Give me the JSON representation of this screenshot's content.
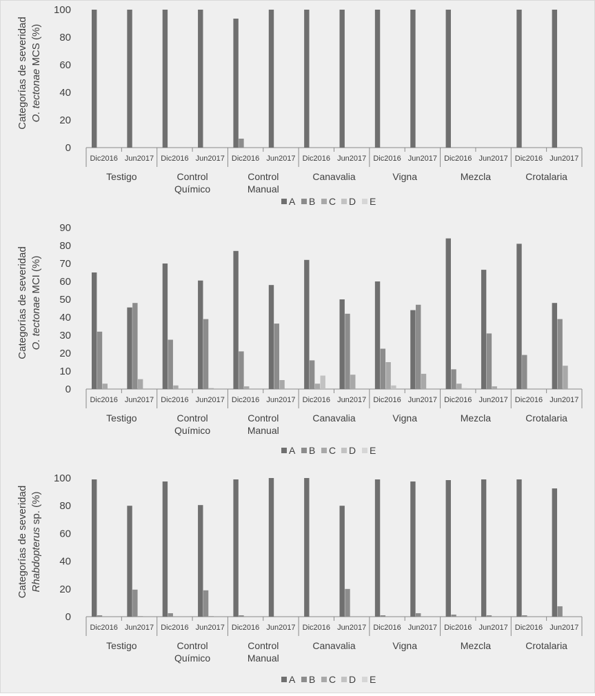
{
  "chart_data": [
    {
      "type": "bar",
      "ylabel_line1": "Categorías de severidad",
      "ylabel_species": "O. tectonae",
      "ylabel_rest": " MCS (%)",
      "ylim": [
        0,
        100
      ],
      "yticks": [
        0,
        20,
        40,
        60,
        80,
        100
      ],
      "groups": [
        "Testigo",
        "Control\nQuímico",
        "Control\nManual",
        "Canavalia",
        "Vigna",
        "Mezcla",
        "Crotalaria"
      ],
      "subcategories": [
        "Dic2016",
        "Jun2017"
      ],
      "series": [
        {
          "name": "A",
          "color": "#6f6f6f",
          "values": [
            100,
            100,
            100,
            100,
            93.5,
            100,
            100,
            100,
            100,
            100,
            100,
            0,
            100,
            100
          ]
        },
        {
          "name": "B",
          "color": "#8c8c8c",
          "values": [
            0,
            0,
            0,
            0,
            6.5,
            0,
            0,
            0,
            0,
            0,
            0,
            0,
            0,
            0
          ]
        },
        {
          "name": "C",
          "color": "#a8a8a8",
          "values": [
            0,
            0,
            0,
            0,
            0,
            0,
            0,
            0,
            0,
            0,
            0,
            0,
            0,
            0
          ]
        },
        {
          "name": "D",
          "color": "#c2c2c2",
          "values": [
            0,
            0,
            0,
            0,
            0,
            0,
            0,
            0,
            0,
            0,
            0,
            0,
            0,
            0
          ]
        },
        {
          "name": "E",
          "color": "#d6d6d6",
          "values": [
            0,
            0,
            0,
            0,
            0,
            0,
            0,
            0,
            0,
            0,
            0,
            0,
            0,
            0
          ]
        }
      ],
      "legend": "bottom"
    },
    {
      "type": "bar",
      "ylabel_line1": "Categorías de severidad",
      "ylabel_species": "O. tectonae",
      "ylabel_rest": " MCI (%)",
      "ylim": [
        0,
        90
      ],
      "yticks": [
        0,
        10,
        20,
        30,
        40,
        50,
        60,
        70,
        80,
        90
      ],
      "groups": [
        "Testigo",
        "Control\nQuímico",
        "Control\nManual",
        "Canavalia",
        "Vigna",
        "Mezcla",
        "Crotalaria"
      ],
      "subcategories": [
        "Dic2016",
        "Jun2017"
      ],
      "series": [
        {
          "name": "A",
          "color": "#6f6f6f",
          "values": [
            65,
            45.5,
            70,
            60.5,
            77,
            58,
            72,
            50,
            60,
            44,
            84,
            66.5,
            81,
            48
          ]
        },
        {
          "name": "B",
          "color": "#8c8c8c",
          "values": [
            32,
            48,
            27.5,
            39,
            21,
            36.5,
            16,
            42,
            22.5,
            47,
            11,
            31,
            19,
            39
          ]
        },
        {
          "name": "C",
          "color": "#a8a8a8",
          "values": [
            3,
            5.5,
            2,
            0.5,
            1.5,
            5,
            3,
            8,
            15,
            8.5,
            3,
            1.5,
            0,
            13
          ]
        },
        {
          "name": "D",
          "color": "#c2c2c2",
          "values": [
            0,
            0,
            0,
            0,
            0,
            0,
            7.5,
            0,
            2,
            0,
            0.5,
            0,
            0,
            0
          ]
        },
        {
          "name": "E",
          "color": "#d6d6d6",
          "values": [
            0,
            0,
            0,
            0,
            0,
            0,
            0,
            0,
            0,
            0,
            0,
            0,
            0,
            0
          ]
        }
      ],
      "legend": "bottom"
    },
    {
      "type": "bar",
      "ylabel_line1": "Categorías de severidad",
      "ylabel_species": "Rhabdopterus",
      "ylabel_rest": " sp. (%)",
      "ylim": [
        0,
        100
      ],
      "yticks": [
        0,
        20,
        40,
        60,
        80,
        100
      ],
      "groups": [
        "Testigo",
        "Control\nQuímico",
        "Control\nManual",
        "Canavalia",
        "Vigna",
        "Mezcla",
        "Crotalaria"
      ],
      "subcategories": [
        "Dic2016",
        "Jun2017"
      ],
      "series": [
        {
          "name": "A",
          "color": "#6f6f6f",
          "values": [
            99,
            80,
            97.5,
            80.5,
            99,
            100,
            100,
            80,
            99,
            97.5,
            98.5,
            99,
            99,
            92.5
          ]
        },
        {
          "name": "B",
          "color": "#8c8c8c",
          "values": [
            1,
            19.5,
            2.5,
            19,
            1,
            0,
            0,
            20,
            1,
            2.5,
            1.5,
            1,
            1,
            7.5
          ]
        },
        {
          "name": "C",
          "color": "#a8a8a8",
          "values": [
            0,
            0.5,
            0,
            0.5,
            0,
            0,
            0,
            0,
            0,
            0,
            0,
            0,
            0,
            0
          ]
        },
        {
          "name": "D",
          "color": "#c2c2c2",
          "values": [
            0,
            0,
            0,
            0,
            0,
            0,
            0,
            0,
            0,
            0,
            0,
            0,
            0,
            0
          ]
        },
        {
          "name": "E",
          "color": "#d6d6d6",
          "values": [
            0,
            0,
            0,
            0,
            0,
            0,
            0,
            0,
            0,
            0,
            0,
            0,
            0,
            0
          ]
        }
      ],
      "legend": "bottom"
    }
  ]
}
